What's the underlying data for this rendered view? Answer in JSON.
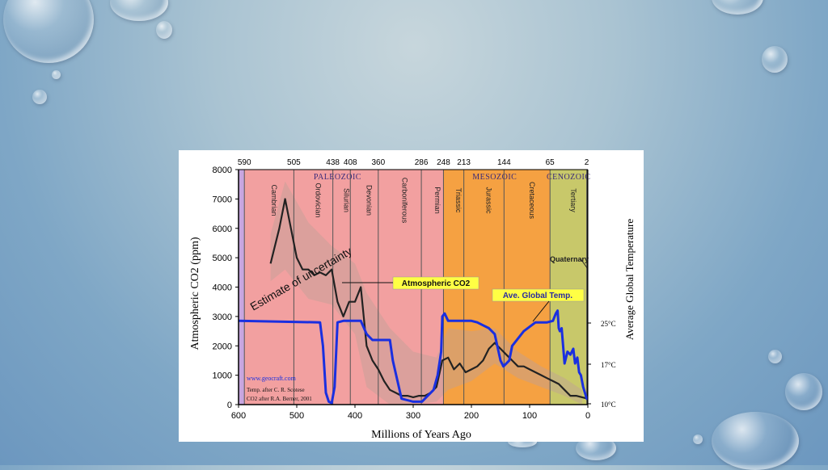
{
  "chart_data": {
    "type": "line",
    "xlabel": "Millions of Years Ago",
    "ylabel": "Atmospheric CO2 (ppm)",
    "y2label": "Average Global Temperature",
    "xlim": [
      600,
      0
    ],
    "ylim": [
      0,
      8000
    ],
    "x_ticks": [
      "600",
      "500",
      "400",
      "300",
      "200",
      "100",
      "0"
    ],
    "y_ticks": [
      "0",
      "1000",
      "2000",
      "3000",
      "4000",
      "5000",
      "6000",
      "7000",
      "8000"
    ],
    "temp_ticks": [
      "25°C",
      "17°C",
      "10°C"
    ],
    "top_ticks": [
      "590",
      "505",
      "438",
      "408",
      "360",
      "286",
      "248",
      "213",
      "144",
      "65",
      "2"
    ],
    "eras": [
      {
        "name": "PALEOZOIC",
        "from": 590,
        "to": 248,
        "color": "#f2a0a0"
      },
      {
        "name": "MESOZOIC",
        "from": 248,
        "to": 65,
        "color": "#f5a142"
      },
      {
        "name": "CENOZOIC",
        "from": 65,
        "to": 2,
        "color": "#c8c86a"
      }
    ],
    "periods": [
      "Cambrian",
      "Ordovician",
      "Silurian",
      "Devonian",
      "Carboniferous",
      "Permian",
      "Triassic",
      "Jurassic",
      "Cretaceous",
      "Tertiary"
    ],
    "quaternary_label": "Quaternary",
    "series": [
      {
        "name": "Atmospheric CO2",
        "color": "#222222",
        "x": [
          545,
          530,
          520,
          510,
          500,
          490,
          480,
          470,
          460,
          450,
          440,
          430,
          420,
          410,
          400,
          390,
          380,
          370,
          360,
          350,
          340,
          330,
          320,
          310,
          300,
          290,
          280,
          270,
          260,
          250,
          240,
          230,
          220,
          210,
          200,
          190,
          180,
          170,
          160,
          150,
          140,
          130,
          120,
          110,
          100,
          90,
          80,
          70,
          60,
          50,
          40,
          30,
          20,
          10,
          0
        ],
        "values": [
          4800,
          6000,
          7000,
          6000,
          5000,
          4600,
          4600,
          4400,
          4500,
          4400,
          4600,
          3500,
          3000,
          3500,
          3500,
          4000,
          2000,
          1500,
          1200,
          800,
          500,
          400,
          300,
          300,
          250,
          300,
          300,
          400,
          600,
          1500,
          1600,
          1200,
          1400,
          1100,
          1200,
          1300,
          1500,
          1900,
          2100,
          1900,
          1700,
          1500,
          1300,
          1300,
          1200,
          1100,
          1000,
          900,
          800,
          700,
          500,
          300,
          300,
          250,
          200
        ]
      },
      {
        "name": "Ave. Global Temp.",
        "color": "#1a2fe0",
        "x": [
          600,
          460,
          455,
          450,
          445,
          440,
          435,
          430,
          420,
          390,
          380,
          370,
          360,
          340,
          335,
          320,
          300,
          285,
          275,
          265,
          258,
          252,
          250,
          246,
          240,
          220,
          200,
          190,
          180,
          170,
          160,
          150,
          145,
          135,
          130,
          110,
          90,
          70,
          60,
          55,
          52,
          50,
          48,
          45,
          40,
          35,
          30,
          25,
          22,
          18,
          15,
          12,
          8,
          5,
          2,
          0
        ],
        "values": [
          2850,
          2800,
          2000,
          400,
          100,
          50,
          600,
          2800,
          2850,
          2850,
          2400,
          2200,
          2200,
          2200,
          1500,
          200,
          100,
          100,
          300,
          500,
          1000,
          1800,
          3000,
          3100,
          2850,
          2850,
          2850,
          2800,
          2700,
          2600,
          2400,
          1500,
          1300,
          1500,
          2000,
          2500,
          2800,
          2800,
          2850,
          3100,
          3200,
          2600,
          2500,
          2600,
          1400,
          1800,
          1700,
          1900,
          1400,
          1600,
          1100,
          1000,
          600,
          400,
          200,
          200
        ]
      }
    ],
    "annotations": [
      {
        "text": "Estimate of uncertainty"
      },
      {
        "text": "Atmospheric CO2"
      },
      {
        "text": "Ave. Global Temp."
      },
      {
        "text": "www.geocraft.com"
      },
      {
        "text": "Temp. after C. R. Scotese"
      },
      {
        "text": "CO2 after R.A. Berner, 2001"
      }
    ],
    "colors": {
      "co2": "#222222",
      "temp": "#1a2fe0",
      "label_box": "#ffff44",
      "paleozoic": "#f2a0a0",
      "mesozoic": "#f5a142",
      "cenozoic": "#c8c86a",
      "precambrian": "#c8a6e0"
    }
  }
}
